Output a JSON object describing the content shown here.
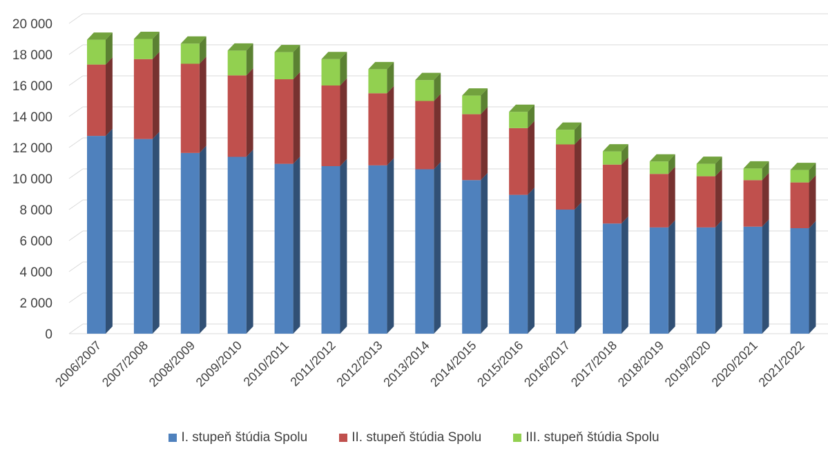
{
  "chart_data": {
    "type": "bar",
    "stacked": true,
    "style": "3d",
    "categories": [
      "2006/2007",
      "2007/2008",
      "2008/2009",
      "2009/2010",
      "2010/2011",
      "2011/2012",
      "2012/2013",
      "2013/2014",
      "2014/2015",
      "2015/2016",
      "2016/2017",
      "2017/2018",
      "2018/2019",
      "2019/2020",
      "2020/2021",
      "2021/2022"
    ],
    "series": [
      {
        "name": "I. stupeň štúdia Spolu",
        "color": "#4f81bd",
        "values": [
          12750,
          12550,
          11650,
          11400,
          10950,
          10800,
          10850,
          10600,
          9900,
          8950,
          8000,
          7100,
          6850,
          6850,
          6900,
          6800
        ]
      },
      {
        "name": "II. stupeň štúdia Spolu",
        "color": "#c0504d",
        "values": [
          4600,
          5150,
          5750,
          5250,
          5450,
          5200,
          4650,
          4400,
          4250,
          4300,
          4200,
          3800,
          3450,
          3300,
          3000,
          2950
        ]
      },
      {
        "name": "III. stupeň štúdia Spolu",
        "color": "#92d050",
        "values": [
          1600,
          1300,
          1300,
          1600,
          1750,
          1700,
          1550,
          1350,
          1200,
          1050,
          950,
          850,
          800,
          800,
          750,
          800
        ]
      }
    ],
    "y_ticks": [
      "0",
      "2 000",
      "4 000",
      "6 000",
      "8 000",
      "10 000",
      "12 000",
      "14 000",
      "16 000",
      "18 000",
      "20 000"
    ],
    "ylim": [
      0,
      20000
    ],
    "grid": true,
    "legend_position": "bottom"
  }
}
